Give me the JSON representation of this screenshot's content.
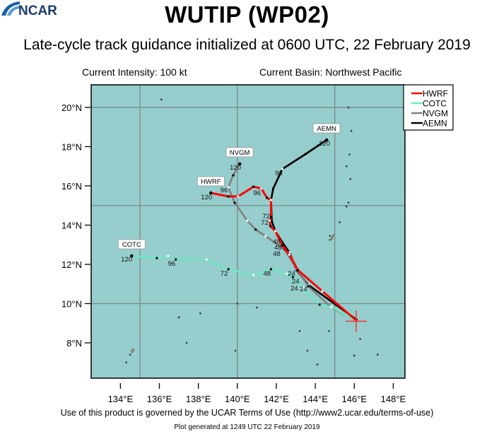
{
  "header": {
    "title": "WUTIP (WP02)",
    "subtitle": "Late-cycle track guidance initialized at 0600 UTC, 22 February 2019",
    "current_intensity": "Current Intensity: 100 kt",
    "current_basin": "Current Basin: Northwest Pacific"
  },
  "footer": {
    "terms": "Use of this product is governed by the UCAR Terms of Use (http://www2.ucar.edu/terms-of-use)",
    "generated": "Plot generated at 1249 UTC   22 February 2019",
    "logo_text": "NCAR"
  },
  "chart_data": {
    "type": "map-track",
    "lon_range": [
      132.5,
      148.6
    ],
    "lat_range": [
      6.2,
      21.15
    ],
    "x_ticks": [
      "134°E",
      "136°E",
      "138°E",
      "140°E",
      "142°E",
      "144°E",
      "146°E",
      "148°E"
    ],
    "x_tick_values": [
      134,
      136,
      138,
      140,
      142,
      144,
      146,
      148
    ],
    "y_ticks": [
      "8°N",
      "10°N",
      "12°N",
      "14°N",
      "16°N",
      "18°N",
      "20°N"
    ],
    "y_tick_values": [
      8,
      10,
      12,
      14,
      16,
      18,
      20
    ],
    "grid_lons": [
      135,
      140,
      145
    ],
    "grid_lats": [
      10,
      15,
      20
    ],
    "background_color": "#96cdcd",
    "current_position": {
      "lon": 146.1,
      "lat": 9.1,
      "marker_color": "#ff3030"
    },
    "legend": {
      "placement": "top-right"
    },
    "series": [
      {
        "name": "HWRF",
        "color": "#ff0000",
        "points": [
          [
            146.09,
            9.15
          ],
          [
            144.36,
            10.63
          ],
          [
            143.1,
            11.71
          ],
          [
            142.67,
            12.5
          ],
          [
            142.31,
            12.97
          ],
          [
            141.95,
            13.69
          ],
          [
            141.7,
            13.95
          ],
          [
            141.66,
            14.23
          ],
          [
            141.73,
            14.41
          ],
          [
            141.73,
            15.28
          ],
          [
            141.52,
            15.39
          ],
          [
            141.23,
            15.86
          ],
          [
            140.83,
            15.96
          ],
          [
            140.04,
            15.46
          ],
          [
            139.54,
            15.46
          ],
          [
            138.64,
            15.64
          ]
        ]
      },
      {
        "name": "COTC",
        "color": "#6ee8c4",
        "points": [
          [
            146.16,
            9.08
          ],
          [
            144.83,
            9.84
          ],
          [
            144.22,
            9.95
          ],
          [
            143.39,
            10.81
          ],
          [
            142.85,
            11.35
          ],
          [
            142.53,
            11.53
          ],
          [
            141.73,
            11.75
          ],
          [
            140.83,
            11.46
          ],
          [
            139.54,
            11.75
          ],
          [
            138.42,
            12.25
          ],
          [
            136.84,
            12.25
          ],
          [
            136.45,
            12.43
          ],
          [
            135.87,
            12.32
          ],
          [
            134.58,
            12.43
          ]
        ]
      },
      {
        "name": "NVGM",
        "color": "#808080",
        "points": [
          [
            146.16,
            9.08
          ],
          [
            144.83,
            9.8
          ],
          [
            143.64,
            10.88
          ],
          [
            143.03,
            11.78
          ],
          [
            142.42,
            12.76
          ],
          [
            141.45,
            13.44
          ],
          [
            140.94,
            13.77
          ],
          [
            140.51,
            14.23
          ],
          [
            139.86,
            15.14
          ],
          [
            139.54,
            15.93
          ],
          [
            139.79,
            16.54
          ],
          [
            140.12,
            17.12
          ]
        ]
      },
      {
        "name": "AEMN",
        "color": "#000000",
        "points": [
          [
            146.16,
            9.15
          ],
          [
            143.64,
            10.95
          ],
          [
            143.03,
            11.71
          ],
          [
            142.67,
            12.61
          ],
          [
            142.31,
            13.12
          ],
          [
            141.95,
            13.69
          ],
          [
            141.77,
            14.2
          ],
          [
            141.73,
            15.28
          ],
          [
            141.84,
            15.86
          ],
          [
            142.31,
            16.86
          ],
          [
            143.5,
            17.62
          ],
          [
            144.58,
            18.34
          ]
        ]
      }
    ],
    "hour_labels": [
      {
        "text": "120",
        "lon": 138.42,
        "lat": 15.42
      },
      {
        "text": "96",
        "lon": 141.01,
        "lat": 15.64
      },
      {
        "text": "72",
        "lon": 141.48,
        "lat": 14.45
      },
      {
        "text": "72",
        "lon": 141.41,
        "lat": 14.13
      },
      {
        "text": "48",
        "lon": 142.02,
        "lat": 13.15
      },
      {
        "text": "48",
        "lon": 142.09,
        "lat": 12.86
      },
      {
        "text": "48",
        "lon": 142.02,
        "lat": 12.54
      },
      {
        "text": "24",
        "lon": 142.78,
        "lat": 11.53
      },
      {
        "text": "24",
        "lon": 142.99,
        "lat": 11.14
      },
      {
        "text": "24",
        "lon": 142.92,
        "lat": 10.77
      },
      {
        "text": "24",
        "lon": 143.39,
        "lat": 10.74
      },
      {
        "text": "96",
        "lon": 139.32,
        "lat": 15.78
      },
      {
        "text": "96",
        "lon": 142.13,
        "lat": 16.65
      },
      {
        "text": "120",
        "lon": 139.9,
        "lat": 16.94
      },
      {
        "text": "120",
        "lon": 144.47,
        "lat": 18.16
      },
      {
        "text": "120",
        "lon": 134.32,
        "lat": 12.25
      },
      {
        "text": "96",
        "lon": 136.63,
        "lat": 12.04
      },
      {
        "text": "72",
        "lon": 139.32,
        "lat": 11.53
      },
      {
        "text": "48",
        "lon": 141.52,
        "lat": 11.53
      }
    ],
    "islands": [
      [
        144.75,
        13.45
      ],
      [
        145.7,
        15.15
      ],
      [
        145.6,
        14.95
      ],
      [
        145.25,
        14.15
      ],
      [
        145.8,
        16.35
      ],
      [
        145.75,
        17.6
      ],
      [
        145.85,
        18.8
      ],
      [
        145.7,
        20.0
      ],
      [
        134.5,
        7.4
      ],
      [
        134.3,
        7.0
      ],
      [
        138.1,
        9.5
      ],
      [
        140.0,
        10.0
      ],
      [
        144.1,
        6.9
      ],
      [
        146.0,
        7.35
      ],
      [
        147.2,
        7.4
      ],
      [
        143.6,
        7.6
      ],
      [
        139.9,
        7.6
      ],
      [
        137.4,
        8.0
      ],
      [
        137.0,
        9.3
      ],
      [
        141.0,
        9.8
      ],
      [
        143.2,
        8.6
      ],
      [
        144.7,
        8.6
      ],
      [
        146.3,
        8.2
      ],
      [
        136.1,
        20.4
      ],
      [
        145.6,
        17.0
      ]
    ]
  }
}
